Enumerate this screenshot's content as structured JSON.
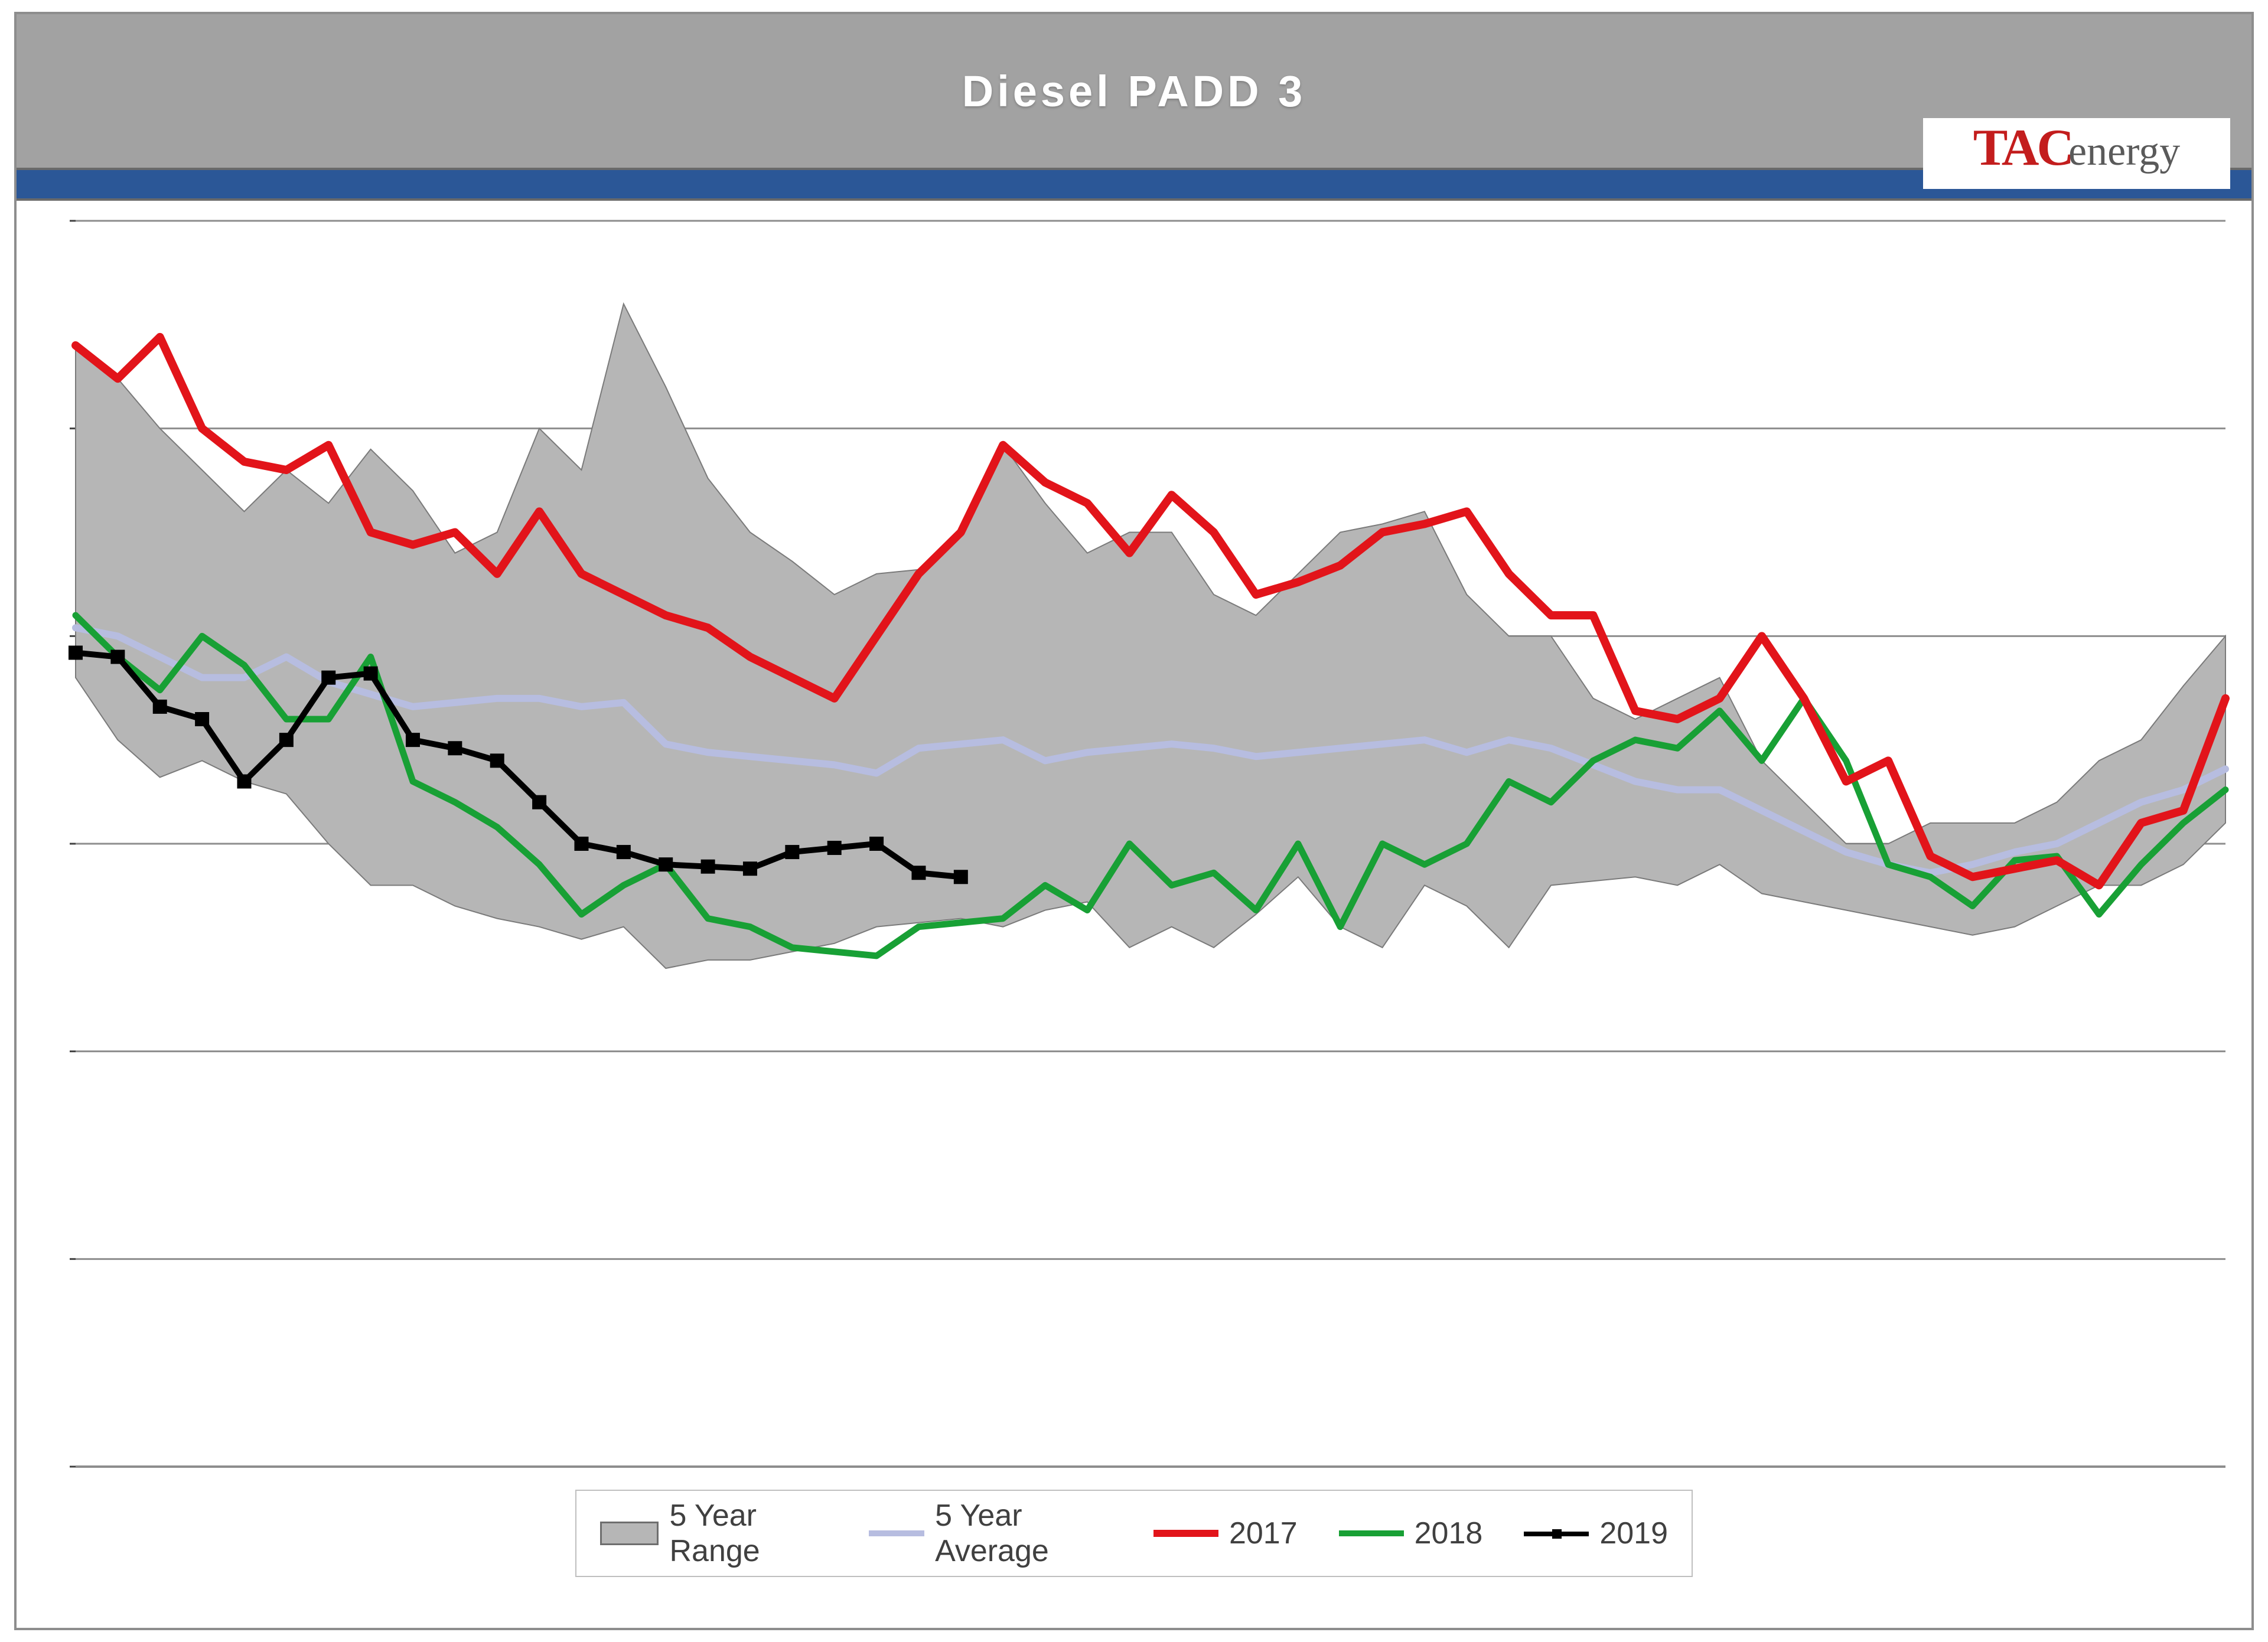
{
  "title": "Diesel  PADD  3",
  "logo": {
    "left": "TAC",
    "right": "energy"
  },
  "legend": {
    "range": "5 Year Range",
    "avg": "5 Year Average",
    "y17": "2017",
    "y18": "2018",
    "y19": "2019"
  },
  "chart": {
    "type": "line",
    "background_color": "#ffffff",
    "title_bar_color": "#a2a2a2",
    "title_font_color": "#ffffff",
    "title_fontsize_pt": 56,
    "blue_band_color": "#2b5797",
    "grid_color": "#8d8d8d",
    "range_fill": "#b6b6b6",
    "range_outline": "#7a7a7a",
    "avg_color": "#b7bde0",
    "y2017_color": "#e2141a",
    "y2018_color": "#18a035",
    "y2019_color": "#000000",
    "y2019_marker": "square",
    "y2019_marker_size": 5,
    "line_width_pt_2017": 4.5,
    "line_width_pt_2018": 3.5,
    "line_width_pt_avg": 3.5,
    "line_width_pt_2019": 3.5,
    "x_count": 52,
    "xlim": [
      1,
      52
    ],
    "ylim": [
      20,
      50
    ],
    "ytick_step": 5,
    "yticks": [
      20,
      25,
      30,
      35,
      40,
      45,
      50
    ],
    "grid_on_y": true,
    "grid_on_x": false,
    "legend_position": "bottom-center",
    "legend_fontsize_pt": 38,
    "range_high": [
      47.0,
      46.2,
      45.0,
      44.0,
      43.0,
      44.0,
      43.2,
      44.5,
      43.5,
      42.0,
      42.5,
      45.0,
      44.0,
      48.0,
      46.0,
      43.8,
      42.5,
      41.8,
      41.0,
      41.5,
      41.6,
      42.5,
      44.6,
      43.2,
      42.0,
      42.5,
      42.5,
      41.0,
      40.5,
      41.5,
      42.5,
      42.7,
      43.0,
      41.0,
      40.0,
      40.0,
      38.5,
      38.0,
      38.5,
      39.0,
      37.0,
      36.0,
      35.0,
      35.0,
      35.5,
      35.5,
      35.5,
      36.0,
      37.0,
      37.5,
      38.8,
      40.0
    ],
    "range_low": [
      39.0,
      37.5,
      36.6,
      37.0,
      36.5,
      36.2,
      35.0,
      34.0,
      34.0,
      33.5,
      33.2,
      33.0,
      32.7,
      33.0,
      32.0,
      32.2,
      32.2,
      32.4,
      32.6,
      33.0,
      33.1,
      33.2,
      33.0,
      33.4,
      33.6,
      32.5,
      33.0,
      32.5,
      33.3,
      34.2,
      33.0,
      32.5,
      34.0,
      33.5,
      32.5,
      34.0,
      34.1,
      34.2,
      34.0,
      34.5,
      33.8,
      33.6,
      33.4,
      33.2,
      33.0,
      32.8,
      33.0,
      33.5,
      34.0,
      34.0,
      34.5,
      35.5
    ],
    "avg": [
      40.2,
      40.0,
      39.5,
      39.0,
      39.0,
      39.5,
      38.9,
      38.6,
      38.3,
      38.4,
      38.5,
      38.5,
      38.3,
      38.4,
      37.4,
      37.2,
      37.1,
      37.0,
      36.9,
      36.7,
      37.3,
      37.4,
      37.5,
      37.0,
      37.2,
      37.3,
      37.4,
      37.3,
      37.1,
      37.2,
      37.3,
      37.4,
      37.5,
      37.2,
      37.5,
      37.3,
      36.9,
      36.5,
      36.3,
      36.3,
      35.8,
      35.3,
      34.8,
      34.5,
      34.3,
      34.5,
      34.8,
      35.0,
      35.5,
      36.0,
      36.3,
      36.8
    ],
    "y2017": [
      47.0,
      46.2,
      47.2,
      45.0,
      44.2,
      44.0,
      44.6,
      42.5,
      42.2,
      42.5,
      41.5,
      43.0,
      41.5,
      41.0,
      40.5,
      40.2,
      39.5,
      39.0,
      38.5,
      40.0,
      41.5,
      42.5,
      44.6,
      43.7,
      43.2,
      42.0,
      43.4,
      42.5,
      41.0,
      41.3,
      41.7,
      42.5,
      42.7,
      43.0,
      41.5,
      40.5,
      40.5,
      38.2,
      38.0,
      38.5,
      40.0,
      38.5,
      36.5,
      37.0,
      34.7,
      34.2,
      34.4,
      34.6,
      34.0,
      35.5,
      35.8,
      38.5
    ],
    "y2018": [
      40.5,
      39.5,
      38.7,
      40.0,
      39.3,
      38.0,
      38.0,
      39.5,
      36.5,
      36.0,
      35.4,
      34.5,
      33.3,
      34.0,
      34.5,
      33.2,
      33.0,
      32.5,
      32.4,
      32.3,
      33.0,
      33.1,
      33.2,
      34.0,
      33.4,
      35.0,
      34.0,
      34.3,
      33.4,
      35.0,
      33.0,
      35.0,
      34.5,
      35.0,
      36.5,
      36.0,
      37.0,
      37.5,
      37.3,
      38.2,
      37.0,
      38.5,
      37.0,
      34.5,
      34.2,
      33.5,
      34.6,
      34.7,
      33.3,
      34.5,
      35.5,
      36.3
    ],
    "y2019": [
      39.6,
      39.5,
      38.3,
      38.0,
      36.5,
      37.5,
      39.0,
      39.1,
      37.5,
      37.3,
      37.0,
      36.0,
      35.0,
      34.8,
      34.5,
      34.45,
      34.4,
      34.8,
      34.9,
      35.0,
      34.3,
      34.2
    ]
  }
}
